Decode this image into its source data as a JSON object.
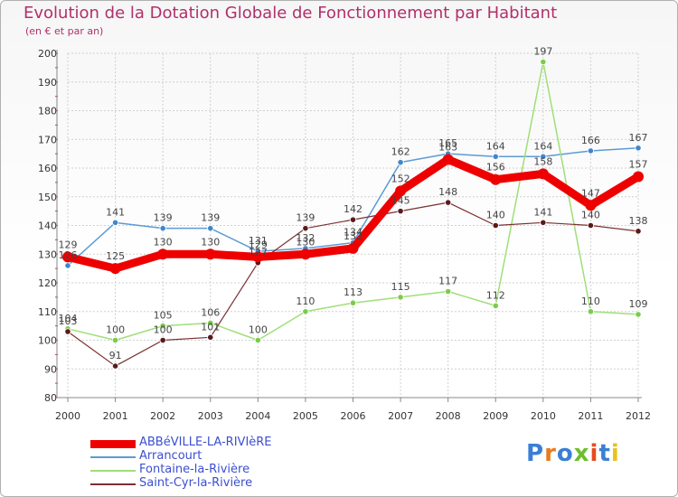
{
  "title": "Evolution de la Dotation Globale de Fonctionnement par Habitant",
  "subtitle": "(en € et par an)",
  "logo": "Proxiti",
  "colors": {
    "title": "#b0306a",
    "legend_text": "#3c4fd0",
    "grid": "#d0d0d0",
    "axis": "#888888",
    "tick_minor": "#cc3366"
  },
  "chart_data": {
    "type": "line",
    "title": "Evolution de la Dotation Globale de Fonctionnement par Habitant",
    "subtitle": "(en € et par an)",
    "xlabel": "",
    "ylabel": "",
    "x": [
      "2000",
      "2001",
      "2002",
      "2003",
      "2004",
      "2005",
      "2006",
      "2007",
      "2008",
      "2009",
      "2010",
      "2011",
      "2012"
    ],
    "ylim": [
      80,
      200
    ],
    "yticks": [
      80,
      90,
      100,
      110,
      120,
      130,
      140,
      150,
      160,
      170,
      180,
      190,
      200
    ],
    "grid": true,
    "legend_position": "bottom-left",
    "series": [
      {
        "name": "Arrancourt",
        "color": "#5b9bd5",
        "dot": "#3f87cc",
        "width": 1.5,
        "values": [
          126,
          141,
          139,
          139,
          131,
          132,
          134,
          162,
          165,
          164,
          164,
          166,
          167
        ],
        "labels": [
          "126",
          "141",
          "139",
          "139",
          "131",
          "132",
          "134",
          "162",
          "165",
          "164",
          "164",
          "166",
          "167"
        ]
      },
      {
        "name": "Fontaine-la-Rivière",
        "color": "#9fdf78",
        "dot": "#7ccb4b",
        "width": 1.5,
        "values": [
          104,
          100,
          105,
          106,
          100,
          110,
          113,
          115,
          117,
          112,
          197,
          110,
          109
        ],
        "labels": [
          "104",
          "100",
          "105",
          "106",
          "100",
          "110",
          "113",
          "115",
          "117",
          "112",
          "197",
          "110",
          "109"
        ]
      },
      {
        "name": "Saint-Cyr-la-Rivière",
        "color": "#7a3030",
        "dot": "#5a1a1a",
        "width": 1.2,
        "values": [
          103,
          91,
          100,
          101,
          127,
          139,
          142,
          145,
          148,
          140,
          141,
          140,
          138
        ],
        "labels": [
          "103",
          "91",
          "100",
          "101",
          "127",
          "139",
          "142",
          "145",
          "148",
          "140",
          "141",
          "140",
          "138"
        ]
      },
      {
        "name": "ABBéVILLE-LA-RIVIèRE",
        "color": "#ee0000",
        "dot": "#ee0000",
        "width": 9,
        "main": true,
        "values": [
          129,
          125,
          130,
          130,
          129,
          130,
          132,
          152,
          163,
          156,
          158,
          147,
          157
        ],
        "labels": [
          "129",
          "125",
          "130",
          "130",
          "129",
          "130",
          "132",
          "152",
          "163",
          "156",
          "158",
          "147",
          "157"
        ]
      }
    ],
    "legend_order": [
      "ABBéVILLE-LA-RIVIèRE",
      "Arrancourt",
      "Fontaine-la-Rivière",
      "Saint-Cyr-la-Rivière"
    ]
  }
}
